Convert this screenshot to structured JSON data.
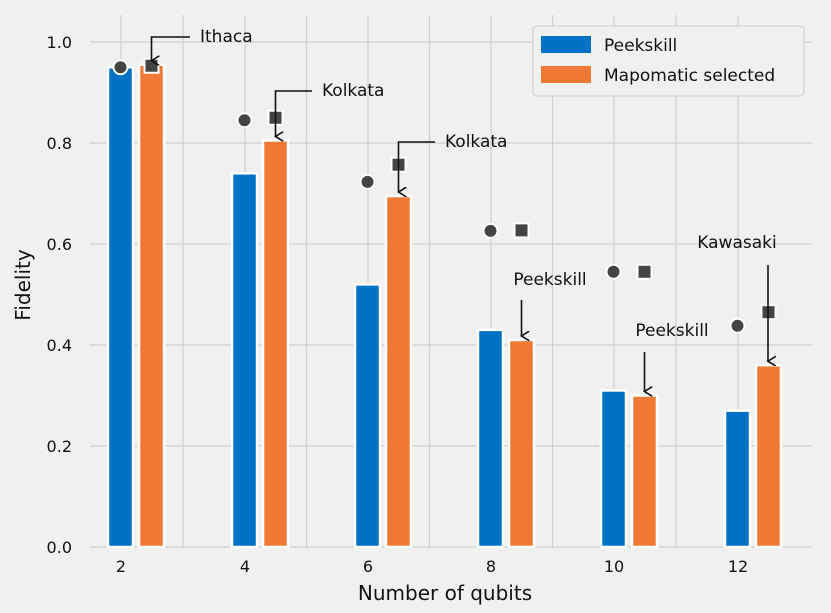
{
  "chart_data": {
    "type": "bar",
    "xlabel": "Number of qubits",
    "ylabel": "Fidelity",
    "ylim": [
      0.0,
      1.05
    ],
    "yticks": [
      "0.0",
      "0.2",
      "0.4",
      "0.6",
      "0.8",
      "1.0"
    ],
    "categories": [
      "2",
      "4",
      "6",
      "8",
      "10",
      "12"
    ],
    "series": [
      {
        "name": "Peekskill",
        "color": "#0072c6",
        "values": [
          0.95,
          0.74,
          0.52,
          0.43,
          0.31,
          0.27
        ],
        "marker": "circle",
        "marker_values": [
          0.95,
          0.845,
          0.723,
          0.626,
          0.545,
          0.438
        ]
      },
      {
        "name": "Mapomatic selected",
        "color": "#f07a35",
        "values": [
          0.955,
          0.805,
          0.695,
          0.41,
          0.3,
          0.36
        ],
        "marker": "square",
        "marker_values": [
          0.953,
          0.85,
          0.757,
          0.627,
          0.545,
          0.465
        ]
      }
    ],
    "annotations": [
      "Ithaca",
      "Kolkata",
      "Kolkata",
      "Peekskill",
      "Peekskill",
      "Kawasaki"
    ],
    "legend_position": "top-right",
    "grid": true
  }
}
